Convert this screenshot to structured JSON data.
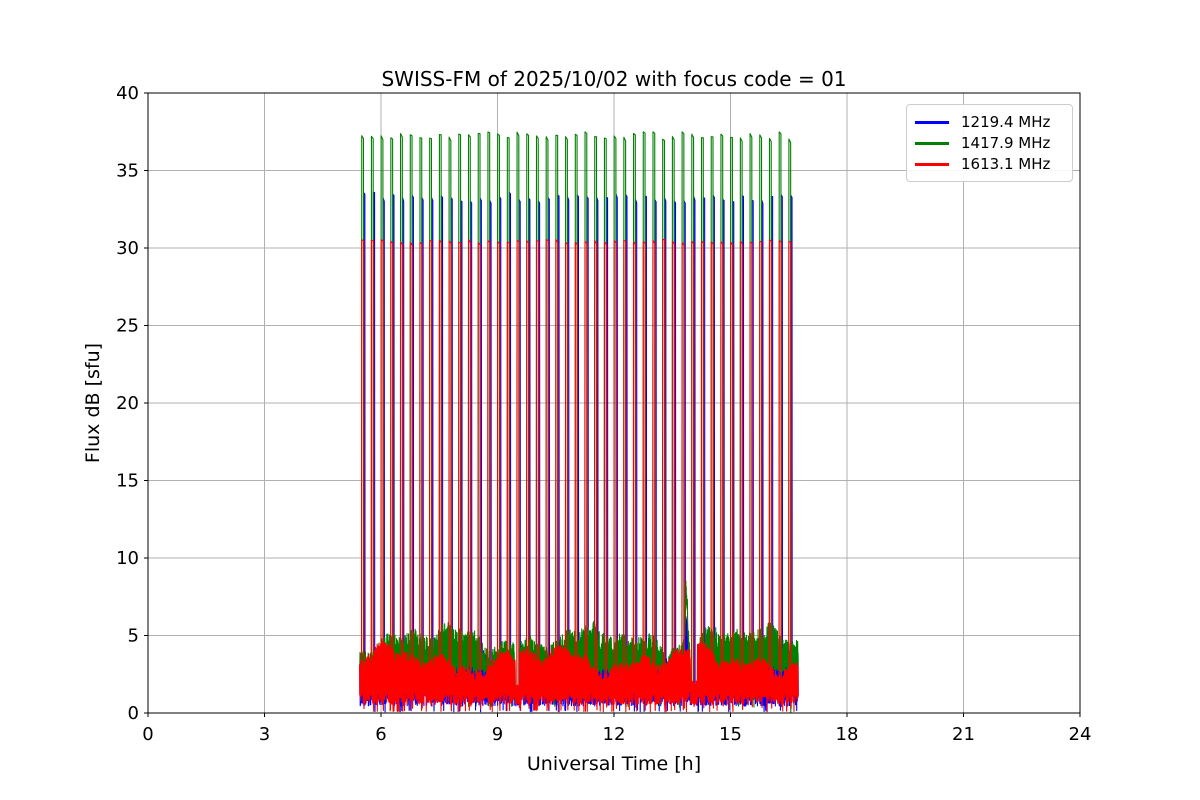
{
  "chart_data": {
    "type": "line",
    "title": "SWISS-FM of 2025/10/02 with focus code = 01",
    "xlabel": "Universal Time [h]",
    "ylabel": "Flux dB [sfu]",
    "xlim": [
      0,
      24
    ],
    "ylim": [
      0,
      40
    ],
    "xticks": [
      0,
      3,
      6,
      9,
      12,
      15,
      18,
      21,
      24
    ],
    "yticks": [
      0,
      5,
      10,
      15,
      20,
      25,
      30,
      35,
      40
    ],
    "grid": true,
    "grid_color": "#b0b0b0",
    "axis_color": "#000000",
    "background_color": "#ffffff",
    "legend": {
      "position": "upper right"
    },
    "observation": {
      "data_start_h": 5.45,
      "data_end_h": 16.74,
      "calibration_spikes": {
        "start_h": 5.5,
        "end_h": 16.5,
        "interval_h": 0.25,
        "count": 45
      }
    },
    "series": [
      {
        "name": "1219.4 MHz",
        "color": "#0000ff",
        "spike_peak_sfu": 33.3,
        "spike_peak_jitter_sfu": 0.6,
        "spike_dip_sfu": 1.0,
        "spike_dip_jitter_sfu": 1.0,
        "spike_time_offset_h": 0.05,
        "spike_plateau_h": 0.03,
        "noise_top_sfu": 3.25,
        "noise_top_jitter_sfu": 1.1,
        "noise_bottom_sfu": 0.45,
        "noise_bottom_jitter_sfu": 0.9,
        "deep_dip_probability": 0.03
      },
      {
        "name": "1417.9 MHz",
        "color": "#008000",
        "spike_peak_sfu": 37.25,
        "spike_peak_jitter_sfu": 0.5,
        "spike_dip_sfu": 2.0,
        "spike_dip_jitter_sfu": 1.4,
        "spike_time_offset_h": 0.0,
        "spike_plateau_h": 0.045,
        "noise_top_sfu": 5.0,
        "noise_top_jitter_sfu": 1.3,
        "noise_bottom_sfu": 2.5,
        "noise_bottom_jitter_sfu": 0.7,
        "deep_dip_probability": 0.015
      },
      {
        "name": "1613.1 MHz",
        "color": "#ff0000",
        "spike_peak_sfu": 30.45,
        "spike_peak_jitter_sfu": 0.22,
        "spike_dip_sfu": 0.3,
        "spike_dip_jitter_sfu": 0.4,
        "spike_time_offset_h": 0.0,
        "spike_plateau_h": 0.055,
        "noise_top_sfu": 3.6,
        "noise_top_jitter_sfu": 0.9,
        "noise_bottom_sfu": 0.55,
        "noise_bottom_jitter_sfu": 0.9,
        "deep_dip_probability": 0.04
      }
    ],
    "events": [
      {
        "type": "burst",
        "center_h": 13.86,
        "width_h": 0.05,
        "gain_sfu": [
          3.4,
          4.3,
          0
        ]
      },
      {
        "type": "gap",
        "start_h": 13.96,
        "end_h": 14.14,
        "residual_bands_sfu": [
          [
            0.5,
            1.3
          ],
          [
            0.9,
            1.7
          ],
          [
            0.45,
            2.1
          ]
        ]
      },
      {
        "type": "gap",
        "start_h": 9.45,
        "end_h": 9.55,
        "residual_bands_sfu": [
          [
            0.4,
            1.1
          ],
          [
            0.8,
            1.5
          ],
          [
            0.5,
            1.9
          ]
        ]
      }
    ]
  }
}
